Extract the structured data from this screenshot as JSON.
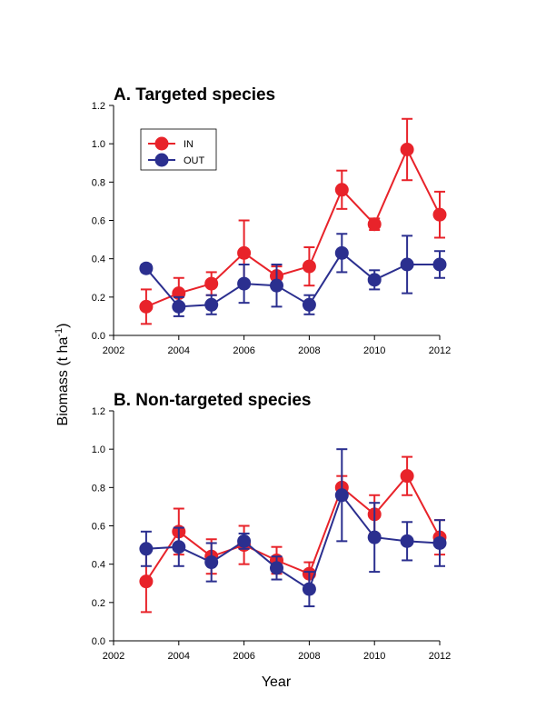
{
  "colors": {
    "IN": "#e8232a",
    "OUT": "#2b2f8f"
  },
  "labels": {
    "ylabel": "Biomass (t ha",
    "ylabel_sup": "-1",
    "ylabel_close": ")",
    "xlabel": "Year"
  },
  "legend": {
    "in_label": "IN",
    "out_label": "OUT"
  },
  "chart_data": [
    {
      "type": "line",
      "title": "A. Targeted species",
      "xlim": [
        2002,
        2012
      ],
      "ylim": [
        0,
        1.2
      ],
      "xticks": [
        "2002",
        "2004",
        "2006",
        "2008",
        "2010",
        "2012"
      ],
      "yticks": [
        "0.0",
        "0.2",
        "0.4",
        "0.6",
        "0.8",
        "1.0",
        "1.2"
      ],
      "legend_position": "top-left",
      "series": [
        {
          "name": "IN",
          "points": [
            {
              "x": 2003,
              "y": 0.15,
              "err": 0.09
            },
            {
              "x": 2004,
              "y": 0.22,
              "err": 0.08
            },
            {
              "x": 2005,
              "y": 0.27,
              "err": 0.06
            },
            {
              "x": 2006,
              "y": 0.43,
              "err": 0.17
            },
            {
              "x": 2007,
              "y": 0.31,
              "err": 0.05
            },
            {
              "x": 2008,
              "y": 0.36,
              "err": 0.1
            },
            {
              "x": 2009,
              "y": 0.76,
              "err": 0.1
            },
            {
              "x": 2010,
              "y": 0.58,
              "err": 0.03
            },
            {
              "x": 2011,
              "y": 0.97,
              "err": 0.16
            },
            {
              "x": 2012,
              "y": 0.63,
              "err": 0.12
            }
          ]
        },
        {
          "name": "OUT",
          "points": [
            {
              "x": 2003,
              "y": 0.35,
              "err": 0.02
            },
            {
              "x": 2004,
              "y": 0.15,
              "err": 0.05
            },
            {
              "x": 2005,
              "y": 0.16,
              "err": 0.05
            },
            {
              "x": 2006,
              "y": 0.27,
              "err": 0.1
            },
            {
              "x": 2007,
              "y": 0.26,
              "err": 0.11
            },
            {
              "x": 2008,
              "y": 0.16,
              "err": 0.05
            },
            {
              "x": 2009,
              "y": 0.43,
              "err": 0.1
            },
            {
              "x": 2010,
              "y": 0.29,
              "err": 0.05
            },
            {
              "x": 2011,
              "y": 0.37,
              "err": 0.15
            },
            {
              "x": 2012,
              "y": 0.37,
              "err": 0.07
            }
          ]
        }
      ]
    },
    {
      "type": "line",
      "title": "B. Non-targeted species",
      "xlim": [
        2002,
        2012
      ],
      "ylim": [
        0,
        1.2
      ],
      "xticks": [
        "2002",
        "2004",
        "2006",
        "2008",
        "2010",
        "2012"
      ],
      "yticks": [
        "0.0",
        "0.2",
        "0.4",
        "0.6",
        "0.8",
        "1.0",
        "1.2"
      ],
      "series": [
        {
          "name": "IN",
          "points": [
            {
              "x": 2003,
              "y": 0.31,
              "err": 0.16
            },
            {
              "x": 2004,
              "y": 0.57,
              "err": 0.12
            },
            {
              "x": 2005,
              "y": 0.44,
              "err": 0.09
            },
            {
              "x": 2006,
              "y": 0.5,
              "err": 0.1
            },
            {
              "x": 2007,
              "y": 0.42,
              "err": 0.07
            },
            {
              "x": 2008,
              "y": 0.35,
              "err": 0.06
            },
            {
              "x": 2009,
              "y": 0.8,
              "err": 0.06
            },
            {
              "x": 2010,
              "y": 0.66,
              "err": 0.1
            },
            {
              "x": 2011,
              "y": 0.86,
              "err": 0.1
            },
            {
              "x": 2012,
              "y": 0.54,
              "err": 0.09
            }
          ]
        },
        {
          "name": "OUT",
          "points": [
            {
              "x": 2003,
              "y": 0.48,
              "err": 0.09
            },
            {
              "x": 2004,
              "y": 0.49,
              "err": 0.1
            },
            {
              "x": 2005,
              "y": 0.41,
              "err": 0.1
            },
            {
              "x": 2006,
              "y": 0.52,
              "err": 0.04
            },
            {
              "x": 2007,
              "y": 0.38,
              "err": 0.06
            },
            {
              "x": 2008,
              "y": 0.27,
              "err": 0.09
            },
            {
              "x": 2009,
              "y": 0.76,
              "err": 0.24
            },
            {
              "x": 2010,
              "y": 0.54,
              "err": 0.18
            },
            {
              "x": 2011,
              "y": 0.52,
              "err": 0.1
            },
            {
              "x": 2012,
              "y": 0.51,
              "err": 0.12
            }
          ]
        }
      ]
    }
  ]
}
